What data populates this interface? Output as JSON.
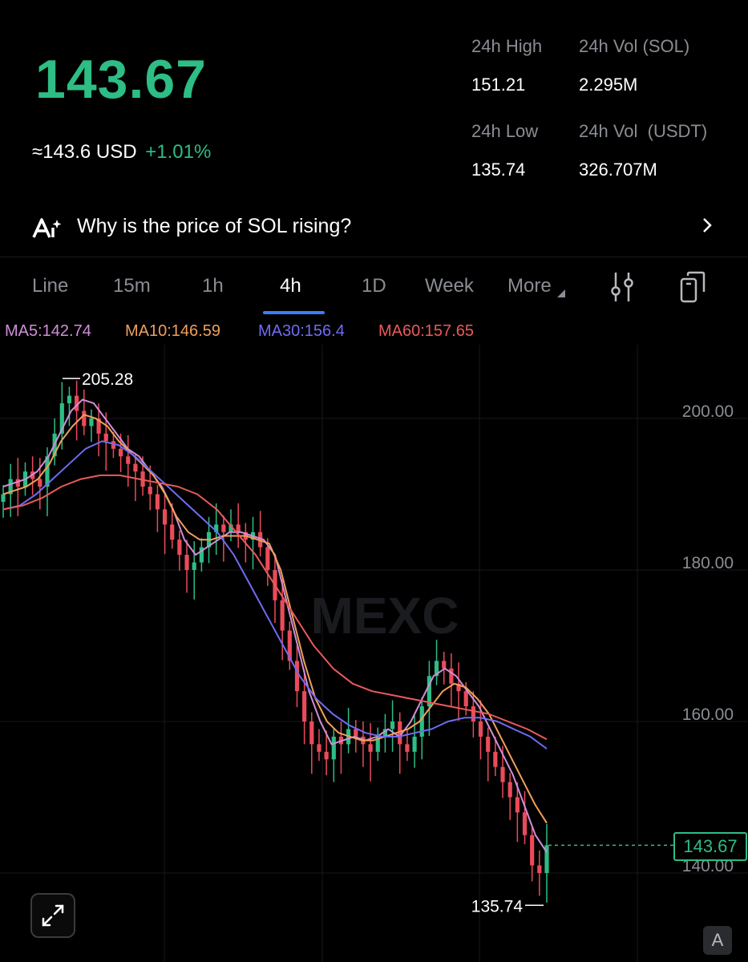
{
  "header": {
    "last_price": "143.67",
    "approx_usd": "≈143.6",
    "usd_label": "USD",
    "change_pct": "+1.01%"
  },
  "stats": {
    "high_label": "24h High",
    "high_value": "151.21",
    "vol_sol_label": "24h Vol (SOL)",
    "vol_sol_value": "2.295M",
    "low_label": "24h Low",
    "low_value": "135.74",
    "vol_usdt_label": "24h Vol  (USDT)",
    "vol_usdt_value": "326.707M"
  },
  "ai_banner": {
    "text": "Why is the price of SOL rising?",
    "icon": "ai-sparkle-icon"
  },
  "tabs": [
    {
      "label": "Line",
      "active": false
    },
    {
      "label": "15m",
      "active": false
    },
    {
      "label": "1h",
      "active": false
    },
    {
      "label": "4h",
      "active": true
    },
    {
      "label": "1D",
      "active": false
    },
    {
      "label": "Week",
      "active": false
    },
    {
      "label": "More",
      "active": false
    }
  ],
  "toolbar_icons": [
    "indicator-settings-icon",
    "copy-layout-icon"
  ],
  "ma_legend": [
    {
      "label": "MA5:142.74",
      "color": "#d08fd8"
    },
    {
      "label": "MA10:146.59",
      "color": "#f0a05a"
    },
    {
      "label": "MA30:156.4",
      "color": "#6f6cf2"
    },
    {
      "label": "MA60:157.65",
      "color": "#ea5a5a"
    }
  ],
  "chart_data": {
    "type": "line",
    "ylim": [
      132,
      212
    ],
    "y_ticks": [
      "200.00",
      "180.00",
      "160.00",
      "140.00"
    ],
    "y_tick_values": [
      200,
      180,
      160,
      140
    ],
    "high_marker": "205.28",
    "low_marker": "135.74",
    "current_price": "143.67",
    "up_color": "#2dbd85",
    "down_color": "#ea4b5a",
    "candle_closes": [
      190,
      192,
      191,
      193,
      192,
      191,
      195,
      198,
      202,
      203,
      201,
      199,
      200,
      198,
      197,
      196,
      195,
      194,
      193,
      191,
      190,
      188,
      186,
      184,
      182,
      180,
      181,
      183,
      185,
      186,
      185,
      186,
      185,
      184,
      185,
      183,
      180,
      176,
      172,
      168,
      164,
      160,
      157,
      156,
      155,
      158,
      157,
      159,
      158,
      157,
      156,
      158,
      159,
      160,
      157,
      156,
      158,
      162,
      166,
      168,
      167,
      165,
      164,
      162,
      160,
      158,
      156,
      154,
      152,
      150,
      148,
      145,
      141,
      140,
      143.67
    ],
    "series": [
      {
        "name": "MA5",
        "color": "#d08fd8",
        "values": [
          191,
          191.5,
          192,
          193,
          195,
          198,
          201,
          202.5,
          202,
          200,
          198,
          196,
          195,
          193,
          191,
          188,
          184,
          182,
          183,
          184,
          185,
          185,
          184.5,
          184,
          182,
          176,
          170,
          164,
          160,
          157,
          157.5,
          158,
          157.5,
          158,
          159,
          158,
          160,
          163,
          166,
          167,
          166,
          164,
          162,
          159,
          156,
          153,
          149,
          145,
          142.74
        ]
      },
      {
        "name": "MA10",
        "color": "#f0a05a",
        "values": [
          190,
          190.5,
          191,
          192,
          194,
          197,
          199,
          200.5,
          200,
          199,
          197,
          195.5,
          194,
          192.5,
          190,
          187,
          185,
          184,
          184,
          184.5,
          184.5,
          184.5,
          184,
          183.5,
          180,
          174,
          168,
          163,
          160,
          158.5,
          158,
          157.5,
          157.5,
          158,
          158.5,
          159,
          160,
          162,
          164,
          165,
          164.5,
          163,
          161,
          158,
          155,
          152,
          149,
          146.59
        ]
      },
      {
        "name": "MA30",
        "color": "#6f6cf2",
        "values": [
          188,
          188.5,
          190,
          192,
          194,
          196,
          197,
          196.5,
          195,
          193,
          191,
          189,
          187,
          185,
          182,
          178,
          174,
          170,
          166,
          163,
          161,
          159.5,
          158.5,
          158,
          158,
          158.5,
          159,
          160,
          160.5,
          160.5,
          160,
          159,
          158,
          156.4
        ]
      },
      {
        "name": "MA60",
        "color": "#ea5a5a",
        "values": [
          188,
          188.5,
          189.5,
          191,
          192,
          192.5,
          192.5,
          192,
          191.5,
          191,
          190,
          188,
          185,
          182,
          178,
          174,
          170,
          167,
          165,
          164,
          163.5,
          163,
          162.5,
          162,
          161.5,
          161,
          160,
          159,
          157.65
        ]
      }
    ]
  },
  "watermark": "MEXC",
  "corner_badge": "A"
}
